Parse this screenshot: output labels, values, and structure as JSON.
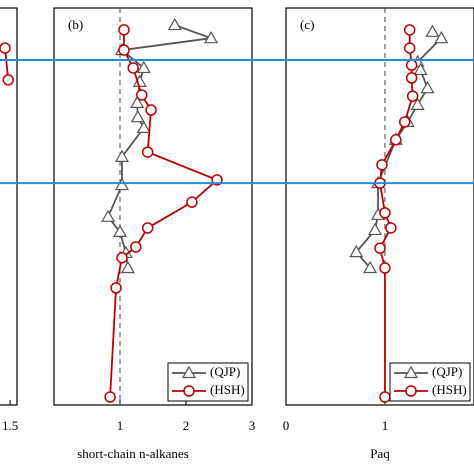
{
  "boundaries": {
    "color": "#1f8fd6",
    "values": [
      13.1,
      44.1
    ]
  },
  "chart_data": [
    {
      "type": "line",
      "xlim": [
        1.0,
        1.65
      ],
      "xticks": [
        1.5
      ],
      "ylim": [
        0,
        100
      ],
      "series": [
        {
          "color": "#c00000",
          "marker": "circle",
          "values": [
            1.39,
            1.46
          ],
          "y": [
            10.1,
            18.1
          ]
        }
      ]
    },
    {
      "type": "line",
      "panel_label": "(b)",
      "x_label": "short-chain n-alkanes",
      "xlim": [
        0,
        3
      ],
      "xticks": [
        1,
        2,
        3
      ],
      "ylim": [
        0,
        100
      ],
      "refline": 1,
      "series": [
        {
          "name": "(QJP)",
          "color": "#555555",
          "marker": "triangle",
          "values": [
            1.83,
            2.38,
            1.03,
            1.36,
            1.3,
            1.26,
            1.27,
            1.36,
            1.03,
            1.03,
            0.82,
            1.0,
            1.09,
            1.12
          ],
          "y": [
            4.3,
            7.6,
            10.6,
            15.1,
            18.6,
            23.9,
            27.5,
            30.2,
            37.5,
            44.6,
            52.6,
            56.4,
            61.7,
            65.5
          ]
        },
        {
          "name": "(HSH)",
          "color": "#c00000",
          "marker": "circle",
          "values": [
            1.06,
            1.06,
            1.2,
            1.33,
            1.47,
            1.42,
            2.47,
            2.09,
            1.42,
            1.24,
            1.03,
            0.94,
            0.85
          ],
          "y": [
            5.5,
            10.6,
            15.1,
            21.9,
            25.7,
            36.3,
            43.3,
            48.9,
            55.4,
            60.2,
            62.9,
            70.5,
            98
          ]
        }
      ]
    },
    {
      "type": "line",
      "panel_label": "(c)",
      "x_label": "Paq",
      "xlim": [
        0,
        1.9
      ],
      "xticks": [
        0,
        1
      ],
      "ylim": [
        0,
        100
      ],
      "refline": 1,
      "series": [
        {
          "name": "(QJP)",
          "color": "#555555",
          "marker": "triangle",
          "values": [
            1.48,
            1.57,
            1.33,
            1.36,
            1.43,
            1.33,
            1.23,
            1.11,
            0.93,
            0.93,
            0.9,
            0.71,
            0.85
          ],
          "y": [
            6,
            7.6,
            13.6,
            15.6,
            20.2,
            24.4,
            28.7,
            33.2,
            44.1,
            52.1,
            55.9,
            61.5,
            65.5
          ]
        },
        {
          "name": "(HSH)",
          "color": "#c00000",
          "marker": "circle",
          "values": [
            1.25,
            1.25,
            1.27,
            1.27,
            1.28,
            1.2,
            1.11,
            0.97,
            0.95,
            1.0,
            1.06,
            0.95,
            1.0,
            1.0
          ],
          "y": [
            5.5,
            10.1,
            14.4,
            17.6,
            22.2,
            28.7,
            33.2,
            39.5,
            44.1,
            51.6,
            55.4,
            60.5,
            65.5,
            98
          ]
        }
      ]
    }
  ]
}
